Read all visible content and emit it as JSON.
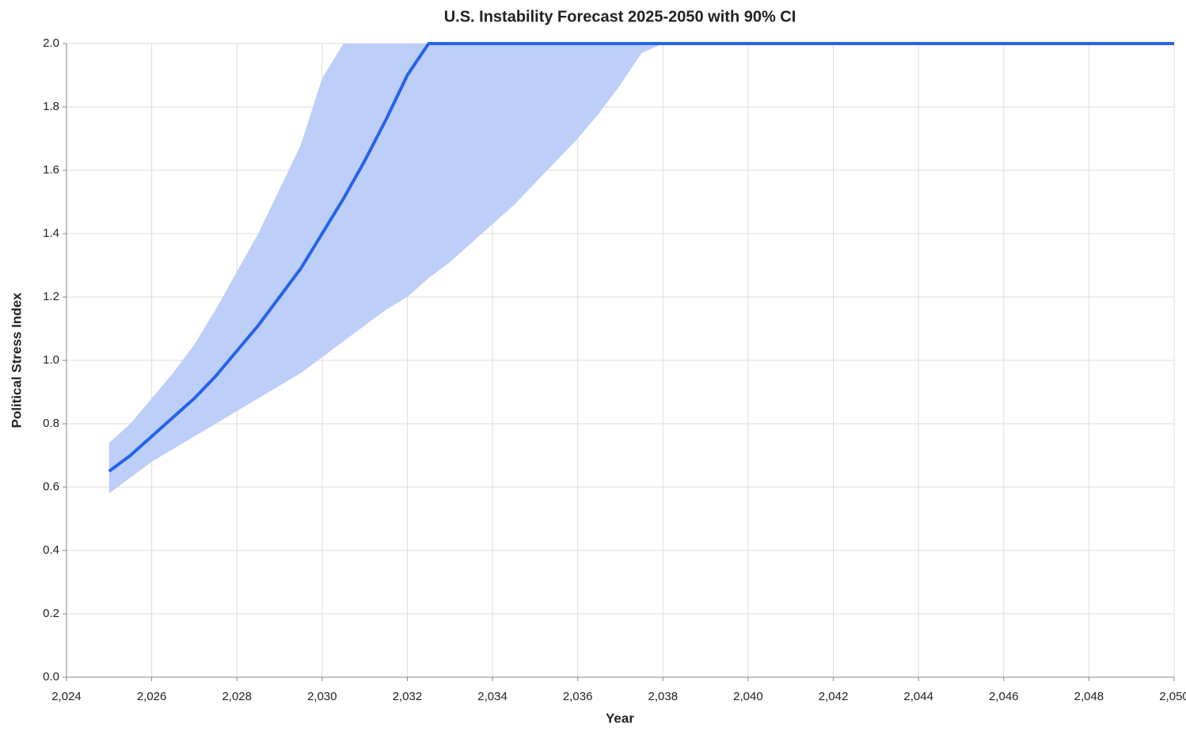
{
  "chart_data": {
    "type": "line",
    "title": "U.S. Instability Forecast 2025-2050 with 90% CI",
    "x_label": "Year",
    "y_label": "Political Stress Index",
    "x": [
      2025,
      2025.5,
      2026,
      2026.5,
      2027,
      2027.5,
      2028,
      2028.5,
      2029,
      2029.5,
      2030,
      2030.5,
      2031,
      2031.5,
      2032,
      2032.5,
      2033,
      2033.5,
      2034,
      2034.5,
      2035,
      2035.5,
      2036,
      2036.5,
      2037,
      2037.5,
      2038,
      2039,
      2040,
      2041,
      2042,
      2043,
      2044,
      2045,
      2046,
      2047,
      2048,
      2049,
      2050
    ],
    "mean": [
      0.65,
      0.7,
      0.76,
      0.82,
      0.88,
      0.95,
      1.03,
      1.11,
      1.2,
      1.29,
      1.4,
      1.51,
      1.63,
      1.76,
      1.9,
      2.0,
      2.0,
      2.0,
      2.0,
      2.0,
      2.0,
      2.0,
      2.0,
      2.0,
      2.0,
      2.0,
      2.0,
      2.0,
      2.0,
      2.0,
      2.0,
      2.0,
      2.0,
      2.0,
      2.0,
      2.0,
      2.0,
      2.0,
      2.0
    ],
    "lower": [
      0.58,
      0.63,
      0.68,
      0.72,
      0.76,
      0.8,
      0.84,
      0.88,
      0.92,
      0.96,
      1.01,
      1.06,
      1.11,
      1.16,
      1.2,
      1.26,
      1.31,
      1.37,
      1.43,
      1.49,
      1.56,
      1.63,
      1.7,
      1.78,
      1.87,
      1.97,
      2.0,
      2.0,
      2.0,
      2.0,
      2.0,
      2.0,
      2.0,
      2.0,
      2.0,
      2.0,
      2.0,
      2.0,
      2.0
    ],
    "upper": [
      0.74,
      0.8,
      0.88,
      0.96,
      1.05,
      1.16,
      1.28,
      1.4,
      1.54,
      1.68,
      1.89,
      2.0,
      2.0,
      2.0,
      2.0,
      2.0,
      2.0,
      2.0,
      2.0,
      2.0,
      2.0,
      2.0,
      2.0,
      2.0,
      2.0,
      2.0,
      2.0,
      2.0,
      2.0,
      2.0,
      2.0,
      2.0,
      2.0,
      2.0,
      2.0,
      2.0,
      2.0,
      2.0,
      2.0
    ],
    "line_color": "#2563eb",
    "band_color": "#bdcff8",
    "xlim": [
      2024,
      2050
    ],
    "ylim": [
      0,
      2
    ],
    "xticks": [
      {
        "value": 2024,
        "label": "2,024"
      },
      {
        "value": 2026,
        "label": "2,026"
      },
      {
        "value": 2028,
        "label": "2,028"
      },
      {
        "value": 2030,
        "label": "2,030"
      },
      {
        "value": 2032,
        "label": "2,032"
      },
      {
        "value": 2034,
        "label": "2,034"
      },
      {
        "value": 2036,
        "label": "2,036"
      },
      {
        "value": 2038,
        "label": "2,038"
      },
      {
        "value": 2040,
        "label": "2,040"
      },
      {
        "value": 2042,
        "label": "2,042"
      },
      {
        "value": 2044,
        "label": "2,044"
      },
      {
        "value": 2046,
        "label": "2,046"
      },
      {
        "value": 2048,
        "label": "2,048"
      },
      {
        "value": 2050,
        "label": "2,050"
      }
    ],
    "yticks": [
      {
        "value": 0,
        "label": "0.0"
      },
      0.2,
      0.4,
      0.6,
      0.8,
      {
        "value": 1,
        "label": "1.0"
      },
      1.2,
      1.4,
      1.6,
      1.8,
      {
        "value": 2,
        "label": "2.0"
      }
    ],
    "grid": true
  }
}
